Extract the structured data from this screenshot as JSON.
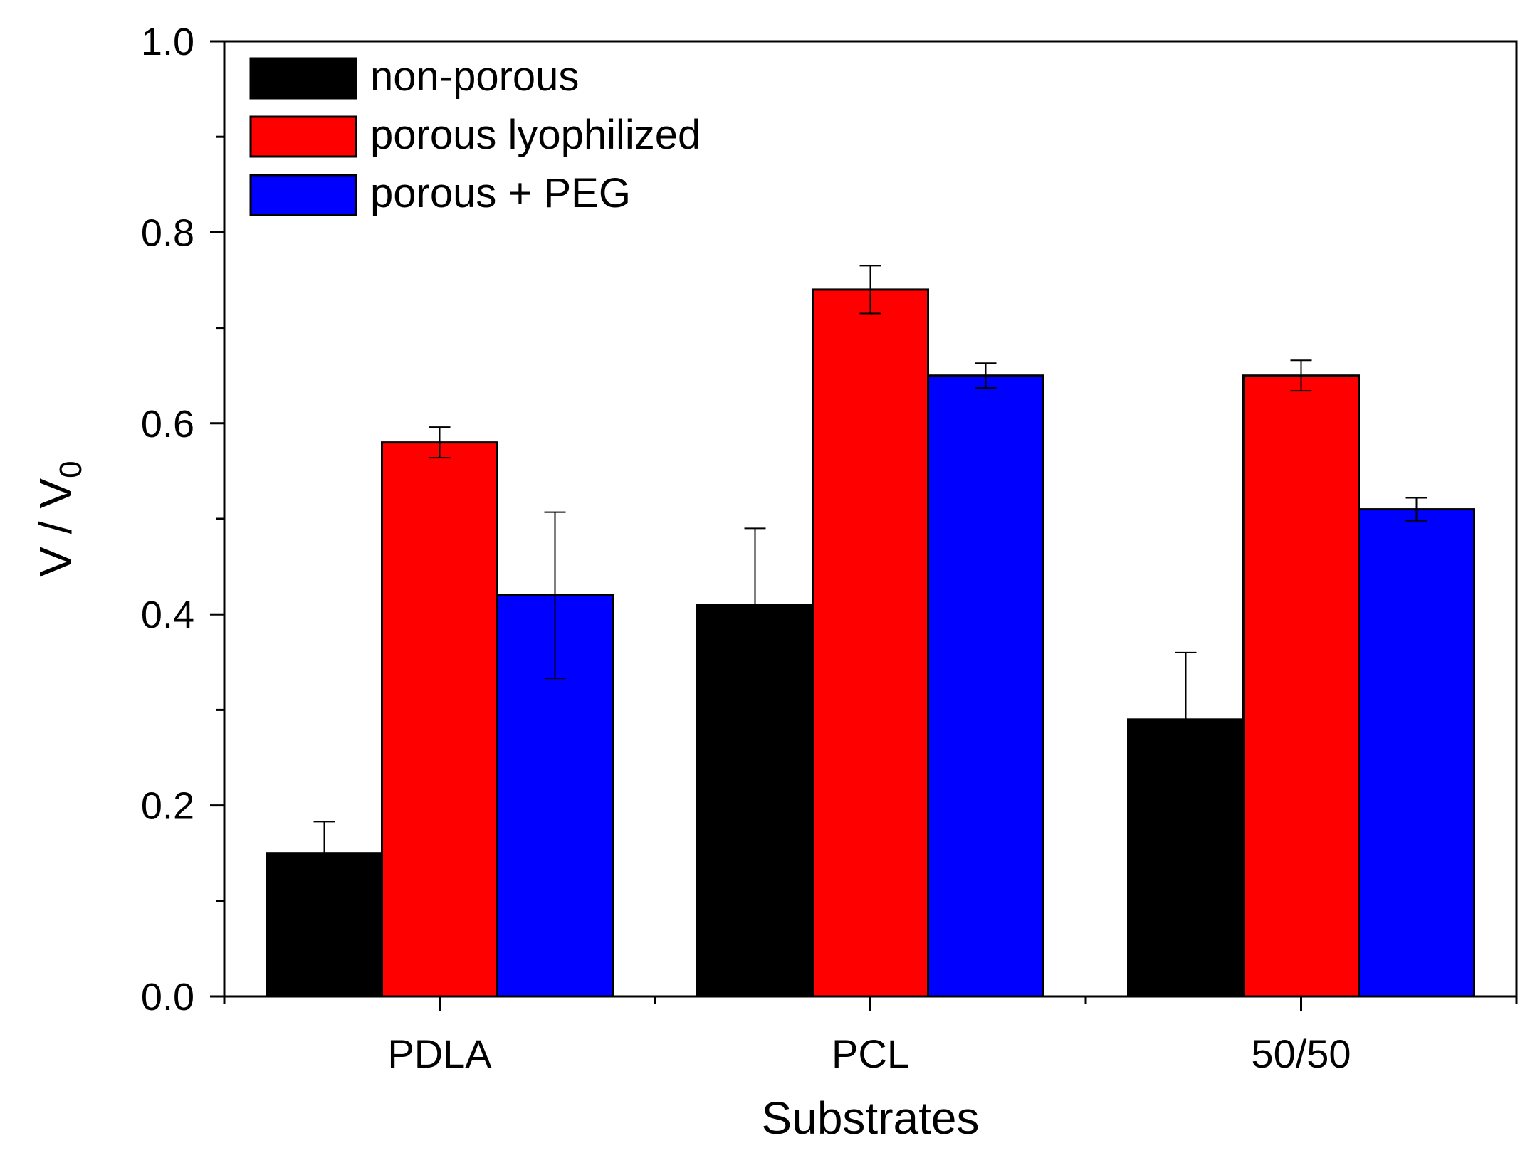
{
  "chart_data": {
    "type": "bar",
    "title": "",
    "xlabel": "Substrates",
    "ylabel": {
      "main": "V / V",
      "subscript": "0"
    },
    "ylim": [
      0,
      1.0
    ],
    "yticks": [
      "0.0",
      "0.2",
      "0.4",
      "0.6",
      "0.8",
      "1.0"
    ],
    "ytick_values": [
      0,
      0.2,
      0.4,
      0.6,
      0.8,
      1.0
    ],
    "grid": false,
    "legend_position": "top-left",
    "categories": [
      "PDLA",
      "PCL",
      "50/50"
    ],
    "series": [
      {
        "name": "non-porous",
        "color": "#000000",
        "values": [
          0.15,
          0.41,
          0.29
        ],
        "errors": [
          0.033,
          0.08,
          0.07
        ]
      },
      {
        "name": "porous lyophilized",
        "color": "#ff0000",
        "values": [
          0.58,
          0.74,
          0.65
        ],
        "errors": [
          0.016,
          0.025,
          0.016
        ]
      },
      {
        "name": "porous + PEG",
        "color": "#0000ff",
        "values": [
          0.42,
          0.65,
          0.51
        ],
        "errors": [
          0.087,
          0.013,
          0.012
        ]
      }
    ]
  }
}
